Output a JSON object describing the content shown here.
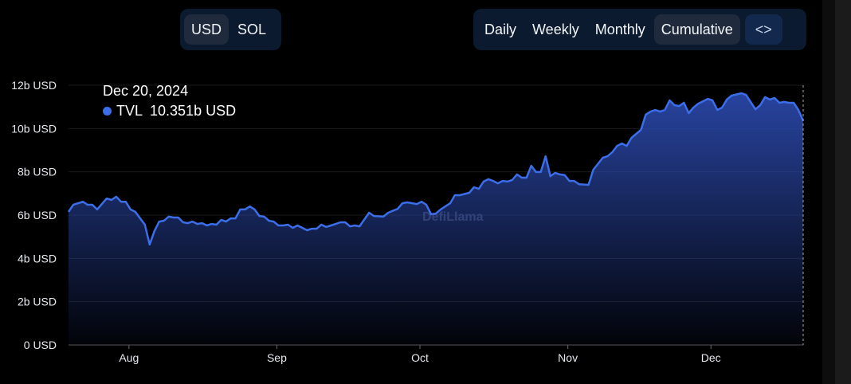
{
  "currency_toggle": {
    "options": [
      "USD",
      "SOL"
    ],
    "selected": "USD"
  },
  "period_toggle": {
    "options": [
      "Daily",
      "Weekly",
      "Monthly",
      "Cumulative"
    ],
    "selected": "Cumulative",
    "embed_icon": "code-icon",
    "embed_label": "<>"
  },
  "tooltip": {
    "date": "Dec 20, 2024",
    "series": "TVL",
    "value": "10.351b USD"
  },
  "watermark": "DefiLlama",
  "colors": {
    "line": "#3b6ee8",
    "area_top": "#2a47a8",
    "background": "#000000",
    "panel": "#0b1a2e"
  },
  "chart_data": {
    "type": "area",
    "ylim": [
      0,
      12
    ],
    "y_unit": "b USD",
    "yticks": [
      "0 USD",
      "2b USD",
      "4b USD",
      "6b USD",
      "8b USD",
      "10b USD",
      "12b USD"
    ],
    "ytick_values": [
      0,
      2,
      4,
      6,
      8,
      10,
      12
    ],
    "xlim": [
      "2024-07-19",
      "2024-12-20"
    ],
    "xticks": [
      "Aug",
      "Sep",
      "Oct",
      "Nov",
      "Dec"
    ],
    "xtick_dates": [
      "2024-08-01",
      "2024-09-01",
      "2024-10-01",
      "2024-11-01",
      "2024-12-01"
    ],
    "grid": true,
    "series": [
      {
        "name": "TVL",
        "points": [
          [
            "2024-07-19",
            6.15
          ],
          [
            "2024-07-20",
            6.48
          ],
          [
            "2024-07-22",
            6.62
          ],
          [
            "2024-07-23",
            6.48
          ],
          [
            "2024-07-24",
            6.48
          ],
          [
            "2024-07-25",
            6.26
          ],
          [
            "2024-07-27",
            6.77
          ],
          [
            "2024-07-28",
            6.7
          ],
          [
            "2024-07-29",
            6.85
          ],
          [
            "2024-07-30",
            6.62
          ],
          [
            "2024-07-31",
            6.62
          ],
          [
            "2024-08-01",
            6.26
          ],
          [
            "2024-08-02",
            6.15
          ],
          [
            "2024-08-04",
            5.56
          ],
          [
            "2024-08-05",
            4.64
          ],
          [
            "2024-08-06",
            5.26
          ],
          [
            "2024-08-07",
            5.7
          ],
          [
            "2024-08-08",
            5.74
          ],
          [
            "2024-08-09",
            5.93
          ],
          [
            "2024-08-10",
            5.89
          ],
          [
            "2024-08-11",
            5.89
          ],
          [
            "2024-08-12",
            5.67
          ],
          [
            "2024-08-13",
            5.63
          ],
          [
            "2024-08-14",
            5.7
          ],
          [
            "2024-08-15",
            5.59
          ],
          [
            "2024-08-16",
            5.63
          ],
          [
            "2024-08-17",
            5.52
          ],
          [
            "2024-08-18",
            5.59
          ],
          [
            "2024-08-19",
            5.56
          ],
          [
            "2024-08-20",
            5.78
          ],
          [
            "2024-08-21",
            5.7
          ],
          [
            "2024-08-22",
            5.85
          ],
          [
            "2024-08-23",
            5.85
          ],
          [
            "2024-08-24",
            6.26
          ],
          [
            "2024-08-25",
            6.26
          ],
          [
            "2024-08-26",
            6.4
          ],
          [
            "2024-08-27",
            6.26
          ],
          [
            "2024-08-28",
            5.96
          ],
          [
            "2024-08-29",
            5.93
          ],
          [
            "2024-08-30",
            5.74
          ],
          [
            "2024-08-31",
            5.7
          ],
          [
            "2024-09-01",
            5.52
          ],
          [
            "2024-09-02",
            5.52
          ],
          [
            "2024-09-03",
            5.56
          ],
          [
            "2024-09-04",
            5.41
          ],
          [
            "2024-09-05",
            5.52
          ],
          [
            "2024-09-06",
            5.41
          ],
          [
            "2024-09-07",
            5.3
          ],
          [
            "2024-09-08",
            5.37
          ],
          [
            "2024-09-09",
            5.37
          ],
          [
            "2024-09-10",
            5.56
          ],
          [
            "2024-09-11",
            5.45
          ],
          [
            "2024-09-12",
            5.52
          ],
          [
            "2024-09-13",
            5.59
          ],
          [
            "2024-09-14",
            5.67
          ],
          [
            "2024-09-15",
            5.67
          ],
          [
            "2024-09-16",
            5.48
          ],
          [
            "2024-09-17",
            5.52
          ],
          [
            "2024-09-18",
            5.48
          ],
          [
            "2024-09-20",
            6.11
          ],
          [
            "2024-09-21",
            5.96
          ],
          [
            "2024-09-23",
            5.93
          ],
          [
            "2024-09-24",
            6.11
          ],
          [
            "2024-09-26",
            6.29
          ],
          [
            "2024-09-27",
            6.55
          ],
          [
            "2024-09-28",
            6.59
          ],
          [
            "2024-09-30",
            6.51
          ],
          [
            "2024-10-01",
            6.62
          ],
          [
            "2024-10-02",
            6.48
          ],
          [
            "2024-10-03",
            6.04
          ],
          [
            "2024-10-04",
            6.07
          ],
          [
            "2024-10-05",
            6.26
          ],
          [
            "2024-10-07",
            6.55
          ],
          [
            "2024-10-08",
            6.92
          ],
          [
            "2024-10-09",
            6.92
          ],
          [
            "2024-10-11",
            7.03
          ],
          [
            "2024-10-12",
            7.29
          ],
          [
            "2024-10-13",
            7.21
          ],
          [
            "2024-10-14",
            7.55
          ],
          [
            "2024-10-15",
            7.66
          ],
          [
            "2024-10-16",
            7.58
          ],
          [
            "2024-10-17",
            7.47
          ],
          [
            "2024-10-18",
            7.58
          ],
          [
            "2024-10-19",
            7.55
          ],
          [
            "2024-10-20",
            7.62
          ],
          [
            "2024-10-21",
            7.88
          ],
          [
            "2024-10-22",
            7.73
          ],
          [
            "2024-10-23",
            7.73
          ],
          [
            "2024-10-24",
            8.28
          ],
          [
            "2024-10-25",
            7.99
          ],
          [
            "2024-10-26",
            7.99
          ],
          [
            "2024-10-27",
            8.72
          ],
          [
            "2024-10-28",
            7.8
          ],
          [
            "2024-10-29",
            7.95
          ],
          [
            "2024-10-30",
            7.88
          ],
          [
            "2024-10-31",
            7.85
          ],
          [
            "2024-11-01",
            7.58
          ],
          [
            "2024-11-02",
            7.58
          ],
          [
            "2024-11-03",
            7.43
          ],
          [
            "2024-11-05",
            7.4
          ],
          [
            "2024-11-06",
            8.1
          ],
          [
            "2024-11-08",
            8.65
          ],
          [
            "2024-11-09",
            8.72
          ],
          [
            "2024-11-10",
            8.91
          ],
          [
            "2024-11-11",
            9.2
          ],
          [
            "2024-11-12",
            9.31
          ],
          [
            "2024-11-13",
            9.2
          ],
          [
            "2024-11-14",
            9.57
          ],
          [
            "2024-11-16",
            9.94
          ],
          [
            "2024-11-17",
            10.64
          ],
          [
            "2024-11-18",
            10.78
          ],
          [
            "2024-11-19",
            10.86
          ],
          [
            "2024-11-20",
            10.78
          ],
          [
            "2024-11-21",
            10.86
          ],
          [
            "2024-11-22",
            11.3
          ],
          [
            "2024-11-23",
            11.08
          ],
          [
            "2024-11-24",
            11.04
          ],
          [
            "2024-11-25",
            11.19
          ],
          [
            "2024-11-26",
            10.71
          ],
          [
            "2024-11-27",
            10.97
          ],
          [
            "2024-11-28",
            11.15
          ],
          [
            "2024-11-30",
            11.37
          ],
          [
            "2024-12-01",
            11.3
          ],
          [
            "2024-12-02",
            10.86
          ],
          [
            "2024-12-03",
            10.97
          ],
          [
            "2024-12-04",
            11.34
          ],
          [
            "2024-12-05",
            11.52
          ],
          [
            "2024-12-07",
            11.63
          ],
          [
            "2024-12-08",
            11.56
          ],
          [
            "2024-12-10",
            10.89
          ],
          [
            "2024-12-11",
            11.08
          ],
          [
            "2024-12-12",
            11.45
          ],
          [
            "2024-12-13",
            11.34
          ],
          [
            "2024-12-14",
            11.41
          ],
          [
            "2024-12-15",
            11.19
          ],
          [
            "2024-12-16",
            11.23
          ],
          [
            "2024-12-17",
            11.19
          ],
          [
            "2024-12-18",
            11.19
          ],
          [
            "2024-12-19",
            10.86
          ],
          [
            "2024-12-20",
            10.351
          ]
        ]
      }
    ]
  }
}
